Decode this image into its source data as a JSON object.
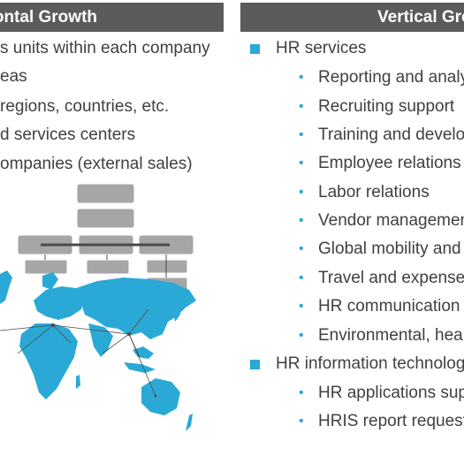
{
  "left": {
    "header": "zontal Growth",
    "items": [
      "s units within each company",
      "eas",
      "regions, countries, etc.",
      "d services centers",
      "ompanies (external sales)"
    ]
  },
  "right": {
    "header": "Vertical Gro",
    "sections": [
      {
        "label": "HR services",
        "items": [
          "Reporting and analyti",
          "Recruiting support",
          "Training and developr",
          "Employee relations",
          "Labor relations",
          "Vendor management",
          "Global mobility and re",
          "Travel and expense re",
          "HR communication se",
          "Environmental, health"
        ]
      },
      {
        "label": "HR information technology s",
        "items": [
          "HR applications suppo",
          "HRIS report requests"
        ]
      }
    ]
  },
  "colors": {
    "header_bg": "#5b5b5b",
    "accent": "#2aa9d6",
    "org_box": "#a6a6a6",
    "map": "#2aa9d6"
  },
  "icons": {
    "section_marker": "square-bullet-icon",
    "item_marker": "dot-bullet-icon"
  }
}
